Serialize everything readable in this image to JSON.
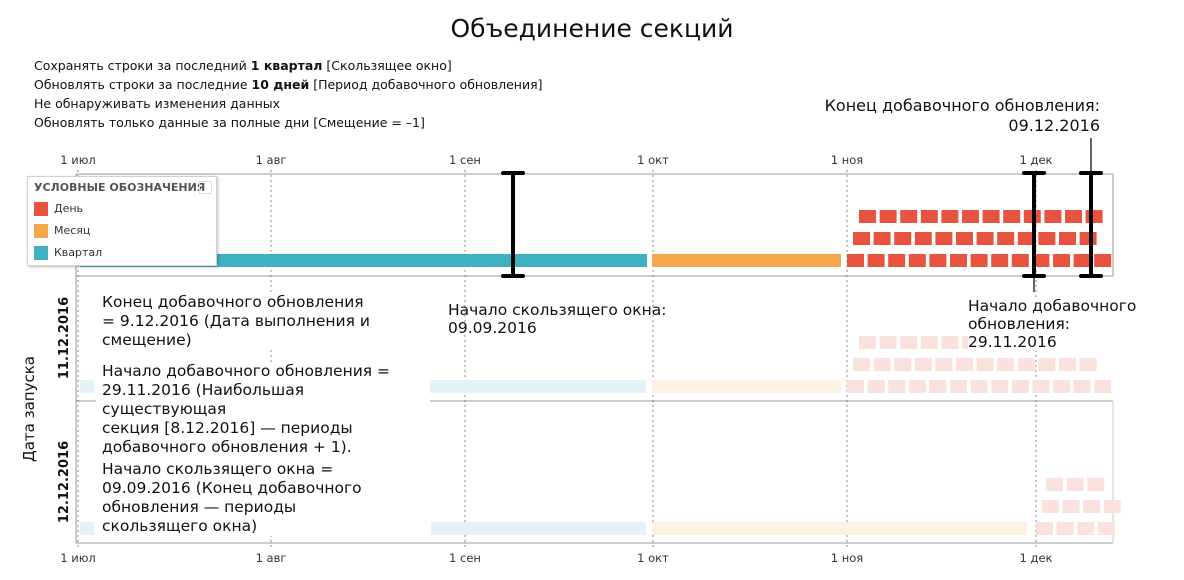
{
  "title": "Объединение секций",
  "settings": [
    {
      "pre": "Сохранять строки за последний ",
      "bold": "1 квартал",
      "post": " [Скользящее окно]"
    },
    {
      "pre": "Обновлять строки за последние ",
      "bold": "10 дней",
      "post": " [Период добавочного обновления]"
    },
    {
      "pre": "Не обнаруживать изменения данных",
      "bold": "",
      "post": ""
    },
    {
      "pre": "Обновлять только данные за полные дни [Смещение = –1]",
      "bold": "",
      "post": ""
    }
  ],
  "axis": {
    "ticks": [
      "1 июл",
      "1 авг",
      "1 сен",
      "1 окт",
      "1 ноя",
      "1 дек"
    ],
    "y_title": "Дата запуска"
  },
  "runs": [
    "11.12.2016",
    "12.12.2016"
  ],
  "legend": {
    "title": "УСЛОВНЫЕ ОБОЗНАЧЕНИЯ",
    "items": [
      {
        "label": "День",
        "color": "#e8533f"
      },
      {
        "label": "Месяц",
        "color": "#f2a74b"
      },
      {
        "label": "Квартал",
        "color": "#3fb1c1"
      }
    ]
  },
  "colors": {
    "day": "#e8533f",
    "month": "#f2a74b",
    "quarter": "#3fb1c1",
    "day_faded": "#fbe1dd",
    "month_faded": "#fdf1e3",
    "quarter_faded": "#e3f3f5"
  },
  "annotations": {
    "incremental_end_top": "Конец добавочного обновления:",
    "incremental_end_top_date": "09.12.2016",
    "window_start": "Начало скользящего окна:",
    "window_start_date": "09.09.2016",
    "incremental_start": "Начало добавочного",
    "incremental_start_2": "обновления:",
    "incremental_start_date": "29.11.2016",
    "note_end": [
      "Конец добавочного обновления",
      "= 9.12.2016 (Дата выполнения и",
      "смещение)"
    ],
    "note_start": [
      "Начало добавочного обновления =",
      "29.11.2016 (Наибольшая существующая",
      "секция [8.12.2016] — периоды",
      "добавочного обновления + 1)."
    ],
    "note_window": [
      "Начало скользящего окна =",
      "09.09.2016 (Конец добавочного",
      "обновления — периоды",
      "скользящего окна)"
    ]
  }
}
